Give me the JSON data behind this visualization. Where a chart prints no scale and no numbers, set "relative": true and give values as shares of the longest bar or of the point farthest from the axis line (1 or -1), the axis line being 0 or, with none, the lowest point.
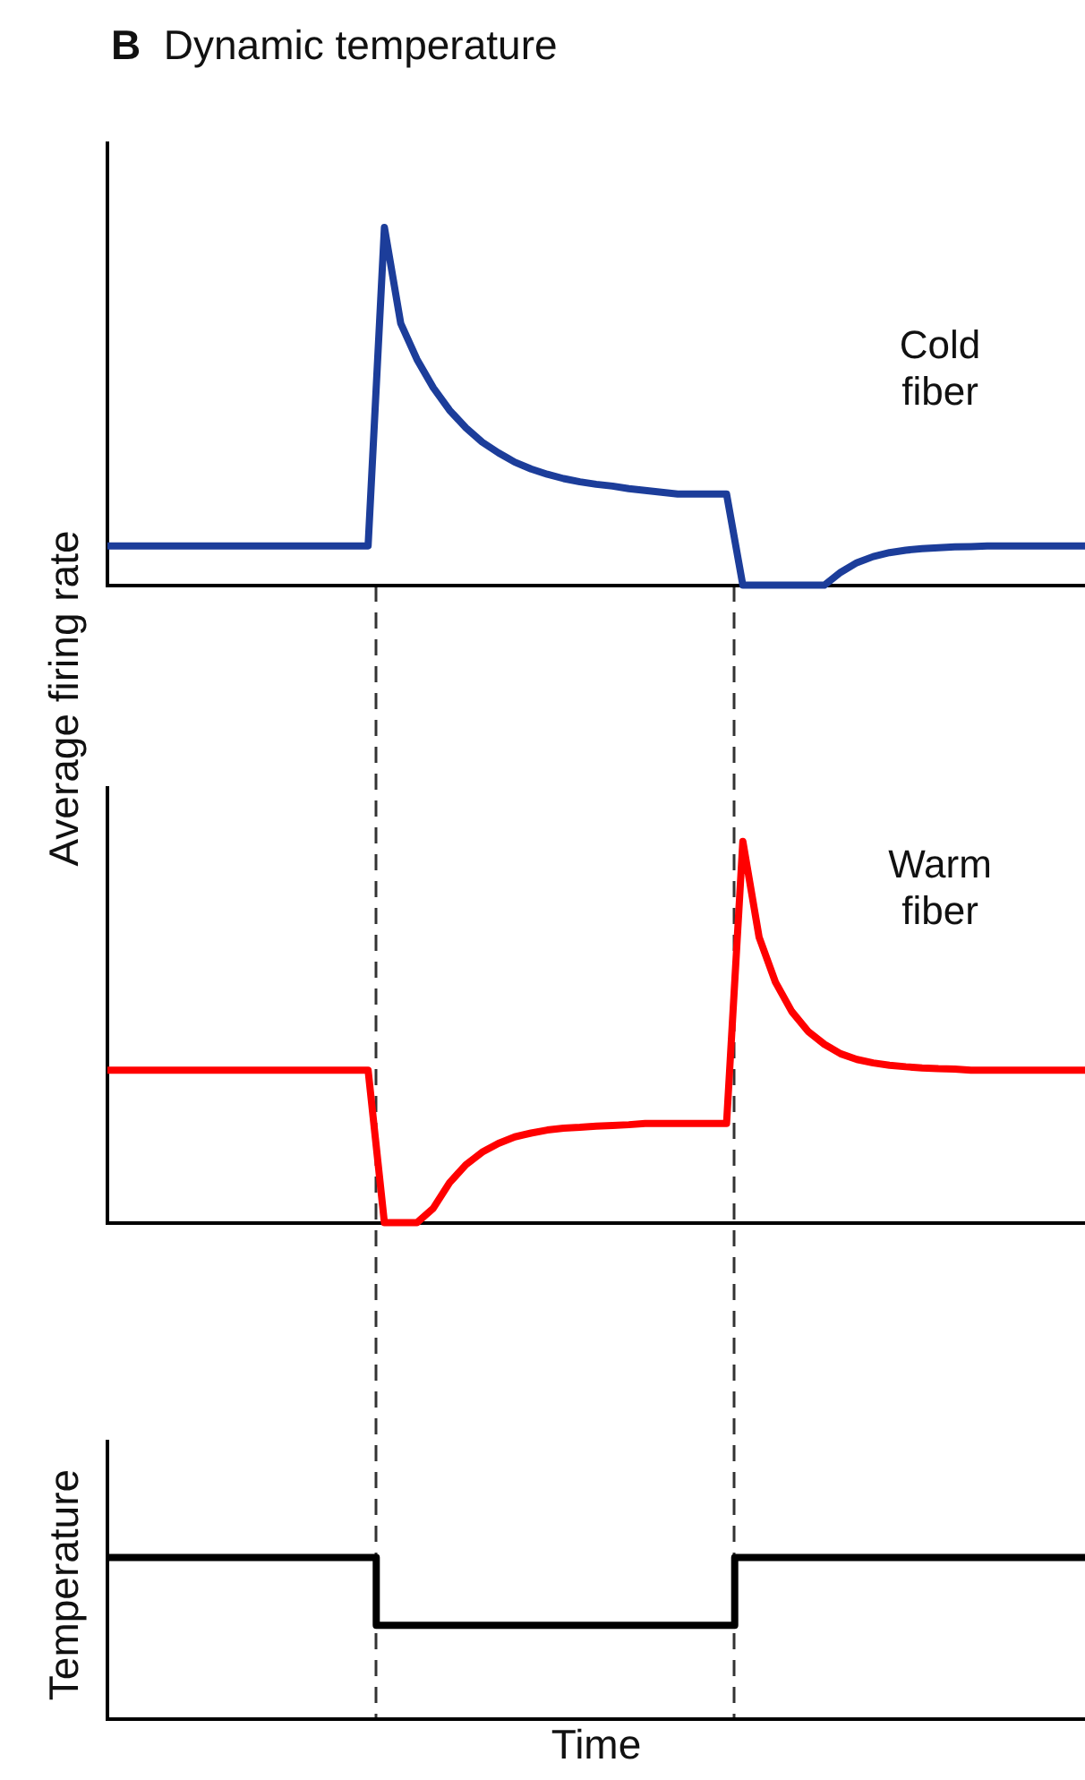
{
  "chart_data": [
    {
      "type": "line",
      "title": "B Dynamic temperature",
      "ylabel": "Average firing rate",
      "relative": true,
      "annotations": [
        "Cold fiber"
      ],
      "categories": [
        null,
        null,
        null,
        null,
        null,
        null,
        null,
        null,
        null,
        null,
        null,
        null,
        null,
        null,
        null,
        null,
        null,
        null,
        null,
        null,
        null,
        null,
        null,
        null,
        null,
        null,
        null,
        null,
        null,
        null,
        null,
        null,
        null,
        null,
        null,
        null,
        null,
        null,
        null,
        null,
        null,
        null,
        null,
        null,
        null,
        null,
        null,
        null,
        null,
        null,
        null,
        null,
        null,
        null,
        null,
        null,
        null,
        null,
        null,
        null,
        null
      ],
      "series": [
        {
          "color": "#1c3d9a",
          "values": [
            0.11,
            0.11,
            0.11,
            0.11,
            0.11,
            0.11,
            0.11,
            0.11,
            0.11,
            0.11,
            0.11,
            0.11,
            0.11,
            0.11,
            0.11,
            0.11,
            0.11,
            1,
            0.732,
            0.631,
            0.552,
            0.489,
            0.44,
            0.4,
            0.37,
            0.344,
            0.325,
            0.31,
            0.298,
            0.289,
            0.282,
            0.277,
            0.27,
            0.265,
            0.26,
            0.255,
            0.255,
            0.255,
            0.255,
            0,
            0,
            0,
            0,
            0,
            0,
            0.036,
            0.063,
            0.08,
            0.091,
            0.098,
            0.102,
            0.105,
            0.107,
            0.108,
            0.11,
            0.11,
            0.11,
            0.11,
            0.11,
            0.11,
            0.11
          ]
        }
      ]
    },
    {
      "type": "line",
      "relative": true,
      "annotations": [
        "Warm fiber"
      ],
      "categories": [
        null,
        null,
        null,
        null,
        null,
        null,
        null,
        null,
        null,
        null,
        null,
        null,
        null,
        null,
        null,
        null,
        null,
        null,
        null,
        null,
        null,
        null,
        null,
        null,
        null,
        null,
        null,
        null,
        null,
        null,
        null,
        null,
        null,
        null,
        null,
        null,
        null,
        null,
        null,
        null,
        null,
        null,
        null,
        null,
        null,
        null,
        null,
        null,
        null,
        null,
        null,
        null,
        null,
        null,
        null,
        null,
        null,
        null,
        null,
        null,
        null
      ],
      "series": [
        {
          "color": "#ff0000",
          "values": [
            0.4,
            0.4,
            0.4,
            0.4,
            0.4,
            0.4,
            0.4,
            0.4,
            0.4,
            0.4,
            0.4,
            0.4,
            0.4,
            0.4,
            0.4,
            0.4,
            0.4,
            0,
            0,
            0,
            0.038,
            0.105,
            0.152,
            0.185,
            0.208,
            0.225,
            0.235,
            0.243,
            0.248,
            0.25,
            0.253,
            0.255,
            0.257,
            0.26,
            0.26,
            0.26,
            0.26,
            0.26,
            0.26,
            1,
            0.748,
            0.631,
            0.554,
            0.502,
            0.468,
            0.443,
            0.428,
            0.419,
            0.413,
            0.409,
            0.406,
            0.404,
            0.403,
            0.4,
            0.4,
            0.4,
            0.4,
            0.4,
            0.4,
            0.4,
            0.4
          ]
        }
      ]
    },
    {
      "type": "step",
      "xlabel": "Time",
      "ylabel": "Temperature",
      "relative": true,
      "categories": [
        null,
        null,
        null,
        null,
        null,
        null,
        null,
        null,
        null,
        null,
        null,
        null,
        null,
        null,
        null,
        null,
        null,
        null,
        null,
        null,
        null,
        null,
        null,
        null,
        null,
        null,
        null,
        null,
        null,
        null,
        null,
        null,
        null,
        null,
        null,
        null,
        null,
        null,
        null,
        null,
        null,
        null,
        null,
        null,
        null,
        null,
        null,
        null,
        null,
        null,
        null,
        null,
        null,
        null,
        null,
        null,
        null,
        null,
        null,
        null,
        null
      ],
      "series": [
        {
          "color": "#000000",
          "values": [
            1,
            1,
            1,
            1,
            1,
            1,
            1,
            1,
            1,
            1,
            1,
            1,
            1,
            1,
            1,
            1,
            1,
            0.58,
            0.58,
            0.58,
            0.58,
            0.58,
            0.58,
            0.58,
            0.58,
            0.58,
            0.58,
            0.58,
            0.58,
            0.58,
            0.58,
            0.58,
            0.58,
            0.58,
            0.58,
            0.58,
            0.58,
            0.58,
            0.58,
            1,
            1,
            1,
            1,
            1,
            1,
            1,
            1,
            1,
            1,
            1,
            1,
            1,
            1,
            1,
            1,
            1,
            1,
            1,
            1,
            1,
            1
          ]
        }
      ]
    }
  ]
}
